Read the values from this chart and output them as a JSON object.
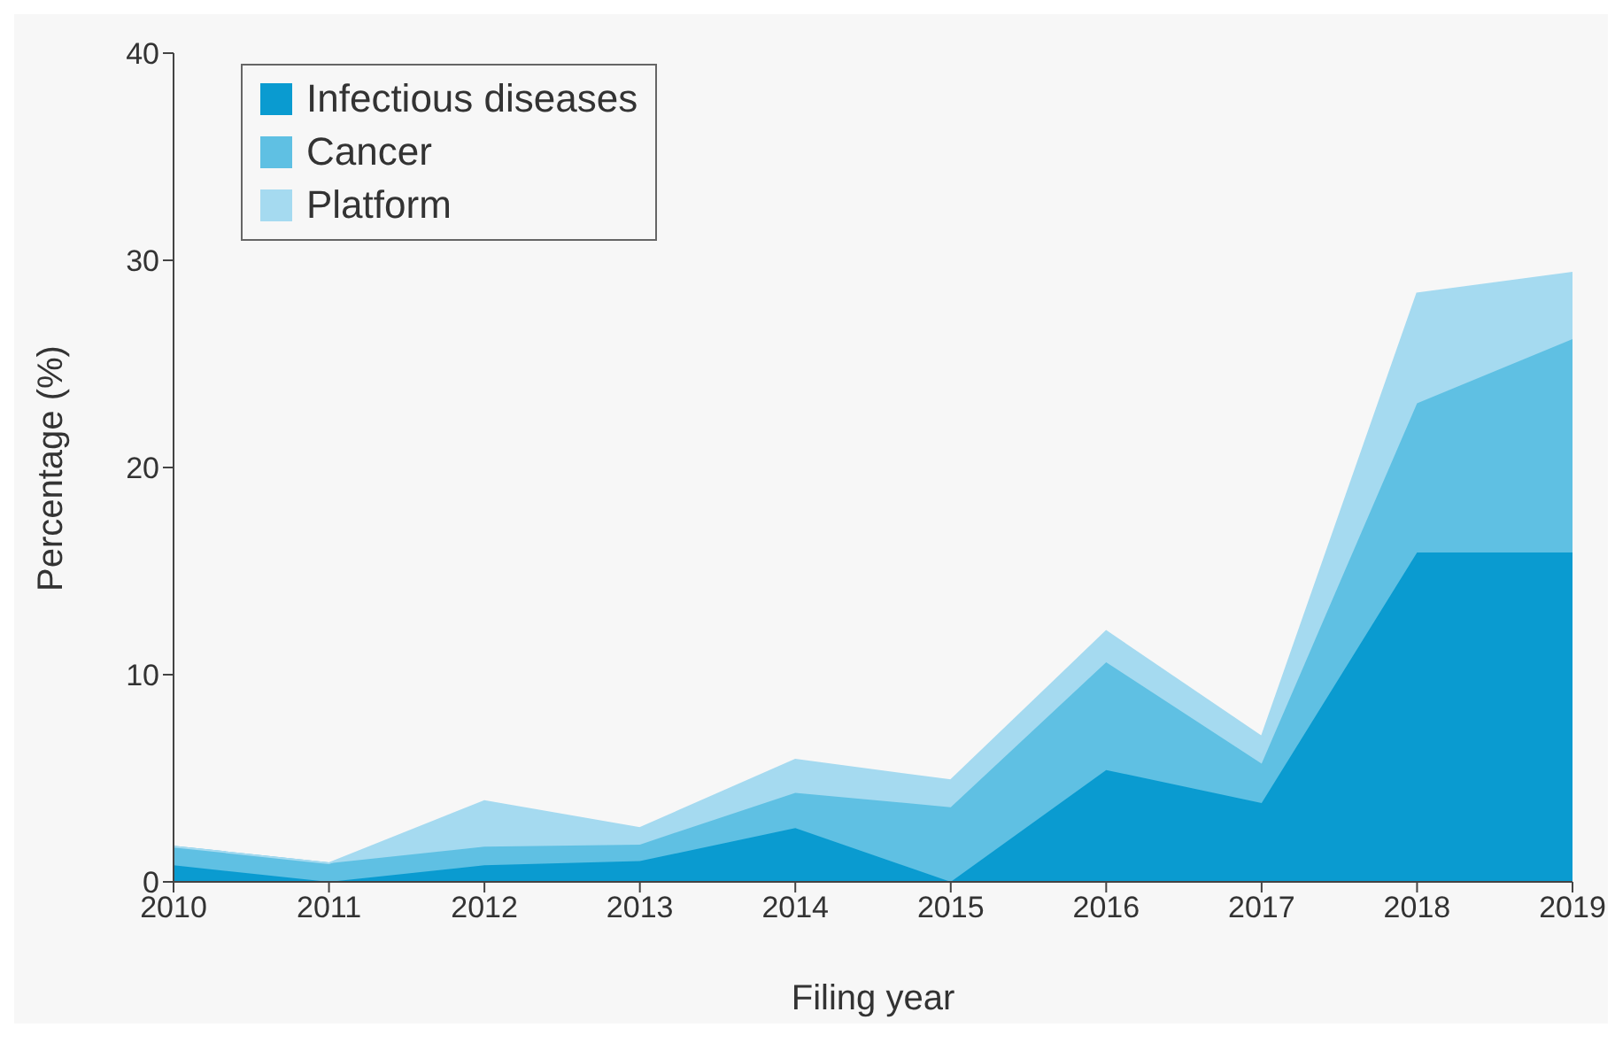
{
  "chart_data": {
    "type": "area",
    "stacked": true,
    "xlabel": "Filing year",
    "ylabel": "Percentage (%)",
    "x": [
      2010,
      2011,
      2012,
      2013,
      2014,
      2015,
      2016,
      2017,
      2018,
      2019
    ],
    "series": [
      {
        "name": "Infectious diseases",
        "color": "#0a9bd0",
        "values": [
          0.8,
          0,
          0.8,
          1.0,
          2.6,
          0,
          5.4,
          3.8,
          15.9,
          15.9
        ]
      },
      {
        "name": "Cancer",
        "color": "#5fc0e3",
        "values": [
          0.9,
          0.9,
          0.9,
          0.8,
          1.7,
          3.6,
          5.2,
          1.9,
          7.2,
          10.3
        ]
      },
      {
        "name": "Platform",
        "color": "#a5daf0",
        "values": [
          0,
          0,
          2.2,
          0.8,
          1.6,
          1.3,
          1.5,
          1.3,
          5.3,
          3.2
        ]
      }
    ],
    "xlim": [
      2010,
      2019
    ],
    "xticks": [
      2010,
      2011,
      2012,
      2013,
      2014,
      2015,
      2016,
      2017,
      2018,
      2019
    ],
    "ylim": [
      0,
      40
    ],
    "yticks": [
      0,
      10,
      20,
      30,
      40
    ],
    "grid": false,
    "legend": "top left"
  }
}
